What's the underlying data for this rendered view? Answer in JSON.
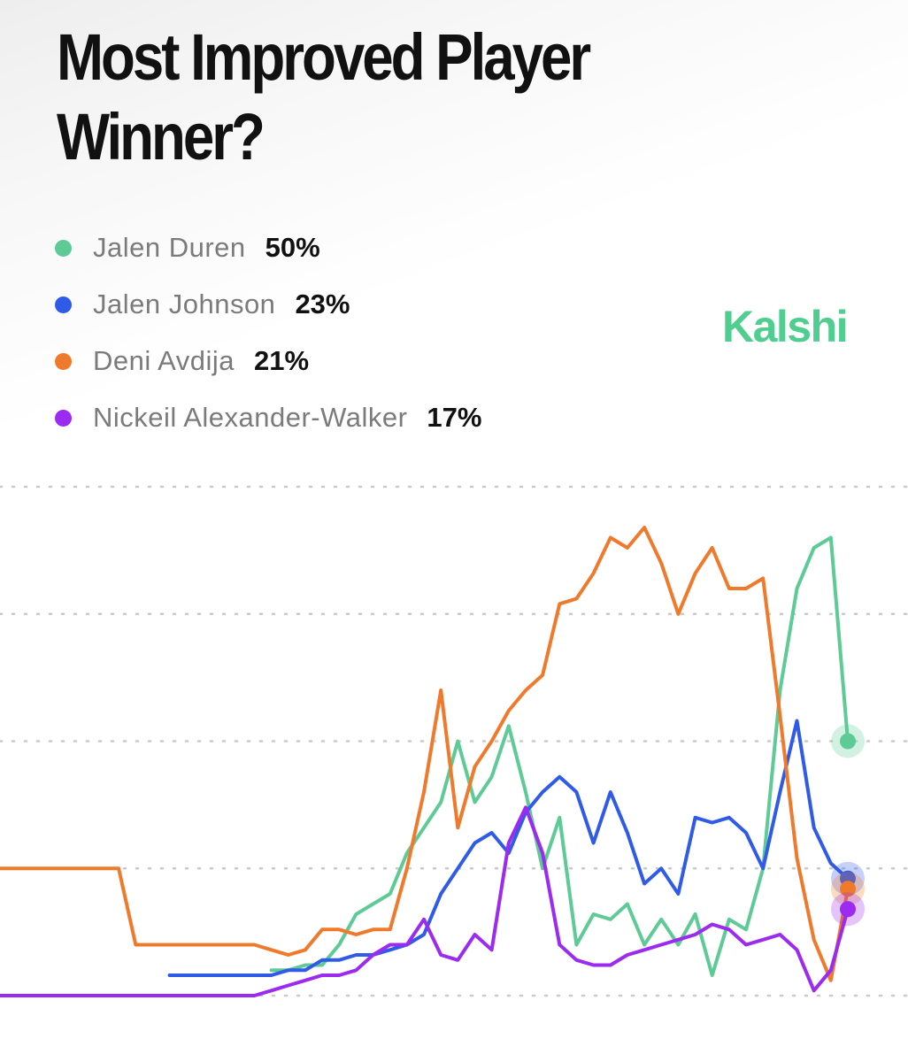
{
  "title": "Most Improved Player Winner?",
  "brand": "Kalshi",
  "legend": [
    {
      "name": "Jalen Duren",
      "value": "50%",
      "color": "#5ecb96"
    },
    {
      "name": "Jalen Johnson",
      "value": "23%",
      "color": "#2f5be8"
    },
    {
      "name": "Deni Avdija",
      "value": "21%",
      "color": "#f07a2c"
    },
    {
      "name": "Nickeil Alexander-Walker",
      "value": "17%",
      "color": "#9b2bf0"
    }
  ],
  "chart_data": {
    "type": "line",
    "title": "Most Improved Player Winner?",
    "xlabel": "",
    "ylabel": "",
    "ylim": [
      0,
      100
    ],
    "grid": "dotted horizontal",
    "legend_position": "top-left",
    "x": [
      0,
      2,
      4,
      6,
      8,
      10,
      12,
      14,
      16,
      18,
      20,
      22,
      24,
      26,
      28,
      30,
      32,
      34,
      36,
      38,
      40,
      42,
      44,
      46,
      48,
      50,
      52,
      54,
      56,
      58,
      60,
      62,
      64,
      66,
      68,
      70,
      72,
      74,
      76,
      78,
      80,
      82,
      84,
      86,
      88,
      90,
      92,
      94,
      96,
      98,
      100
    ],
    "series": [
      {
        "name": "Jalen Duren",
        "color": "#5ecb96",
        "values": [
          null,
          null,
          null,
          null,
          null,
          null,
          null,
          null,
          null,
          null,
          null,
          null,
          null,
          null,
          null,
          null,
          5,
          5,
          6,
          6,
          10,
          16,
          18,
          20,
          28,
          33,
          38,
          50,
          38,
          43,
          53,
          40,
          25,
          35,
          10,
          16,
          15,
          18,
          10,
          15,
          10,
          16,
          4,
          15,
          13,
          25,
          60,
          80,
          88,
          90,
          50
        ]
      },
      {
        "name": "Jalen Johnson",
        "color": "#2f5be8",
        "values": [
          null,
          null,
          null,
          null,
          null,
          null,
          null,
          null,
          null,
          null,
          4,
          4,
          4,
          4,
          4,
          4,
          4,
          5,
          5,
          7,
          7,
          8,
          8,
          9,
          10,
          12,
          20,
          25,
          30,
          32,
          28,
          36,
          40,
          43,
          40,
          30,
          40,
          32,
          22,
          25,
          20,
          35,
          34,
          35,
          32,
          25,
          40,
          54,
          33,
          26,
          23
        ]
      },
      {
        "name": "Deni Avdija",
        "color": "#f07a2c",
        "values": [
          25,
          25,
          25,
          25,
          25,
          25,
          25,
          25,
          10,
          10,
          10,
          10,
          10,
          10,
          10,
          10,
          9,
          8,
          9,
          13,
          13,
          12,
          13,
          13,
          25,
          40,
          60,
          33,
          45,
          50,
          56,
          60,
          63,
          77,
          78,
          83,
          90,
          88,
          92,
          85,
          75,
          83,
          88,
          80,
          80,
          82,
          55,
          27,
          11,
          3,
          21
        ]
      },
      {
        "name": "Nickeil Alexander-Walker",
        "color": "#9b2bf0",
        "values": [
          0,
          0,
          0,
          0,
          0,
          0,
          0,
          0,
          0,
          0,
          0,
          0,
          0,
          0,
          0,
          0,
          1,
          2,
          3,
          4,
          4,
          5,
          8,
          10,
          10,
          15,
          8,
          7,
          12,
          9,
          30,
          37,
          28,
          10,
          7,
          6,
          6,
          8,
          9,
          10,
          11,
          12,
          14,
          13,
          10,
          11,
          12,
          9,
          1,
          5,
          17
        ]
      }
    ]
  }
}
